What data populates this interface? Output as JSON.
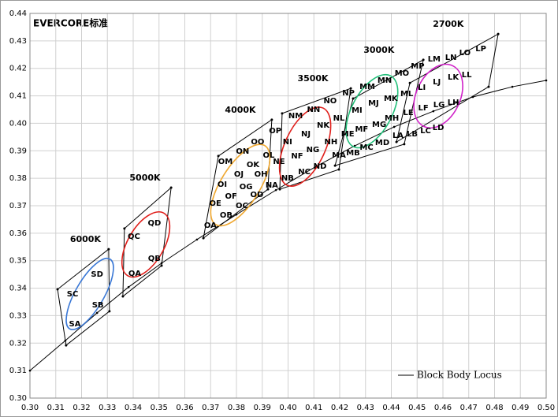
{
  "chart_data": {
    "type": "chromaticity",
    "title": "EVERCORE标准",
    "xlim": [
      0.3,
      0.5
    ],
    "ylim": [
      0.3,
      0.44
    ],
    "xticks": [
      {
        "value": 0.3,
        "label": "0.30"
      },
      0.31,
      0.32,
      0.33,
      0.34,
      0.35,
      0.36,
      0.37,
      0.38,
      0.39,
      {
        "value": 0.4,
        "label": "0.40"
      },
      0.41,
      0.42,
      0.43,
      0.44,
      0.45,
      0.46,
      0.47,
      0.48,
      0.49,
      {
        "value": 0.5,
        "label": "0.50"
      }
    ],
    "yticks": [
      {
        "value": 0.3,
        "label": "0.30"
      },
      0.31,
      0.32,
      0.33,
      0.34,
      0.35,
      0.36,
      0.37,
      0.38,
      0.39,
      {
        "value": 0.4,
        "label": "0.40"
      },
      0.41,
      0.42,
      0.43,
      0.44
    ],
    "grid": true,
    "legend": "lower right",
    "locus": {
      "name": "Block Body Locus",
      "color": "#000000",
      "x": [
        0.3,
        0.3137,
        0.326,
        0.3382,
        0.351,
        0.3647,
        0.38,
        0.3953,
        0.4105,
        0.4258,
        0.4411,
        0.4563,
        0.4716,
        0.4869,
        0.5
      ],
      "y": [
        0.31,
        0.3209,
        0.331,
        0.3404,
        0.3491,
        0.3577,
        0.3668,
        0.3757,
        0.3841,
        0.3918,
        0.3987,
        0.4044,
        0.4096,
        0.4133,
        0.4156
      ]
    },
    "groups": [
      {
        "name": "6000K",
        "color": "#3a78d6",
        "corners_x": [
          0.3107,
          0.3305,
          0.3308,
          0.314
        ],
        "corners_y": [
          0.3396,
          0.3542,
          0.3316,
          0.3192
        ],
        "bins": [
          "SA",
          "SB",
          "SC",
          "SD"
        ],
        "bin_x": [
          0.3174,
          0.3263,
          0.3165,
          0.326
        ],
        "bin_y": [
          0.327,
          0.3338,
          0.3379,
          0.345
        ],
        "ellipse": {
          "x": 0.3232,
          "y": 0.3379,
          "a": 0.0156,
          "b": 0.0055,
          "angle": -60
        }
      },
      {
        "name": "5000K",
        "color": "#e0201c",
        "corners_x": [
          0.3366,
          0.3547,
          0.351,
          0.336
        ],
        "corners_y": [
          0.3617,
          0.3766,
          0.3482,
          0.337
        ],
        "bins": [
          "QA",
          "QB",
          "QC",
          "QD"
        ],
        "bin_x": [
          0.3406,
          0.3482,
          0.3403,
          0.3482
        ],
        "bin_y": [
          0.3453,
          0.3508,
          0.3588,
          0.3637
        ],
        "ellipse": {
          "x": 0.3449,
          "y": 0.3559,
          "a": 0.014,
          "b": 0.007,
          "angle": -60
        }
      },
      {
        "name": "4000K",
        "color": "#f0a830",
        "corners_x": [
          0.373,
          0.3937,
          0.3922,
          0.3672
        ],
        "corners_y": [
          0.3881,
          0.4013,
          0.376,
          0.3582
        ],
        "bins": [
          "OA",
          "OB",
          "OC",
          "OD",
          "OE",
          "OF",
          "OG",
          "OH",
          "OI",
          "OJ",
          "OK",
          "OL",
          "OM",
          "ON",
          "OO",
          "OP"
        ],
        "bin_x": [
          0.3699,
          0.376,
          0.3821,
          0.3879,
          0.3718,
          0.3779,
          0.3837,
          0.3895,
          0.3745,
          0.3809,
          0.3864,
          0.3925,
          0.3757,
          0.3824,
          0.3882,
          0.395
        ],
        "bin_y": [
          0.3628,
          0.3666,
          0.37,
          0.374,
          0.3709,
          0.3734,
          0.3769,
          0.3815,
          0.3777,
          0.3815,
          0.3849,
          0.3884,
          0.3861,
          0.3898,
          0.3932,
          0.3972
        ],
        "ellipse": {
          "x": 0.3815,
          "y": 0.3775,
          "a": 0.018,
          "b": 0.0075,
          "angle": -58
        }
      },
      {
        "name": "3500K",
        "color": "#e0201c",
        "corners_x": [
          0.3977,
          0.4243,
          0.4197,
          0.3968
        ],
        "corners_y": [
          0.4036,
          0.4127,
          0.3832,
          0.376
        ],
        "bins": [
          "NA",
          "NB",
          "NC",
          "ND",
          "NE",
          "NF",
          "NG",
          "NH",
          "NI",
          "NJ",
          "NK",
          "NL",
          "NM",
          "NN",
          "NO",
          "NP"
        ],
        "bin_x": [
          0.3937,
          0.3998,
          0.4063,
          0.4124,
          0.3965,
          0.4035,
          0.4096,
          0.4166,
          0.3998,
          0.4069,
          0.4136,
          0.4197,
          0.4029,
          0.4099,
          0.4163,
          0.4234
        ],
        "bin_y": [
          0.3775,
          0.38,
          0.3823,
          0.3843,
          0.3861,
          0.3881,
          0.3904,
          0.3932,
          0.3932,
          0.3961,
          0.3993,
          0.4018,
          0.4027,
          0.405,
          0.4081,
          0.411
        ],
        "ellipse": {
          "x": 0.4066,
          "y": 0.3915,
          "a": 0.0165,
          "b": 0.0078,
          "angle": -65
        }
      },
      {
        "name": "3000K",
        "color": "#22c07a",
        "corners_x": [
          0.4252,
          0.4524,
          0.445,
          0.4182
        ],
        "corners_y": [
          0.409,
          0.4231,
          0.3924,
          0.3846
        ],
        "bins": [
          "MA",
          "MB",
          "MC",
          "MD",
          "ME",
          "MF",
          "MG",
          "MH",
          "MI",
          "MJ",
          "MK",
          "ML",
          "MM",
          "MN",
          "MO",
          "MP"
        ],
        "bin_x": [
          0.4197,
          0.4252,
          0.4304,
          0.4365,
          0.4231,
          0.4285,
          0.4353,
          0.4402,
          0.4267,
          0.4331,
          0.4398,
          0.446,
          0.4307,
          0.4374,
          0.4441,
          0.4502
        ],
        "bin_y": [
          0.3884,
          0.3892,
          0.3912,
          0.3929,
          0.3961,
          0.3978,
          0.3995,
          0.4018,
          0.4047,
          0.4073,
          0.409,
          0.4107,
          0.4133,
          0.4156,
          0.4182,
          0.4208
        ],
        "ellipse": {
          "x": 0.4325,
          "y": 0.4044,
          "a": 0.0155,
          "b": 0.0078,
          "angle": -62
        }
      },
      {
        "name": "2700K",
        "color": "#d020c8",
        "corners_x": [
          0.4472,
          0.4814,
          0.4777,
          0.442
        ],
        "corners_y": [
          0.4147,
          0.4325,
          0.4133,
          0.3932
        ],
        "bins": [
          "LA",
          "LB",
          "LC",
          "LD",
          "LE",
          "LF",
          "LG",
          "LH",
          "LI",
          "LJ",
          "LK",
          "LL",
          "LM",
          "LN",
          "LO",
          "LP"
        ],
        "bin_x": [
          0.4426,
          0.4481,
          0.4533,
          0.4582,
          0.4466,
          0.4524,
          0.4585,
          0.464,
          0.4518,
          0.4576,
          0.464,
          0.4692,
          0.4566,
          0.4631,
          0.4685,
          0.4747
        ],
        "bin_y": [
          0.3955,
          0.3961,
          0.3972,
          0.3984,
          0.4038,
          0.4056,
          0.4067,
          0.4076,
          0.413,
          0.415,
          0.4168,
          0.4176,
          0.4234,
          0.4239,
          0.4256,
          0.4271
        ],
        "ellipse": {
          "x": 0.4582,
          "y": 0.4099,
          "a": 0.013,
          "b": 0.0085,
          "angle": -65
        }
      }
    ]
  }
}
